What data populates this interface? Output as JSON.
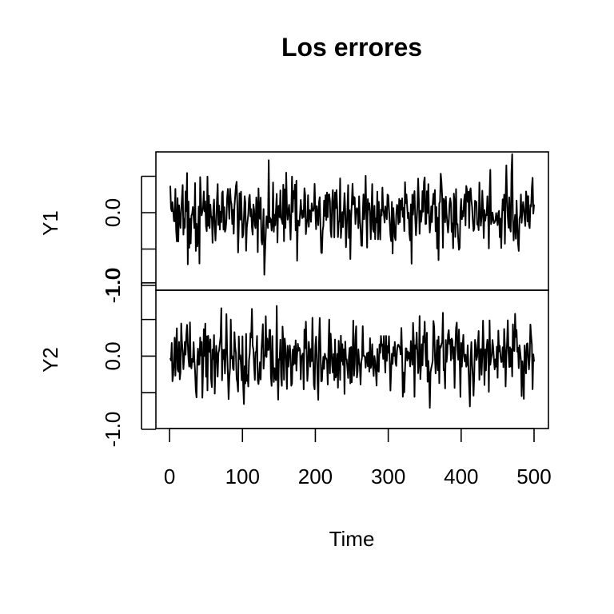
{
  "chart_data": {
    "type": "line",
    "title": "Los errores",
    "xlabel": "Time",
    "x_range": [
      1,
      500
    ],
    "xlim": [
      1,
      500
    ],
    "x_ticks": [
      0,
      100,
      200,
      300,
      400,
      500
    ],
    "x_tick_labels": [
      "0",
      "100",
      "200",
      "300",
      "400",
      "500"
    ],
    "grid": false,
    "legend": "none",
    "panels": [
      {
        "name": "Y1",
        "ylabel": "Y1",
        "ylim": [
          -1.0,
          1.0
        ],
        "y_ticks": [
          -1.0,
          -0.5,
          0.0,
          0.5
        ],
        "y_tick_labels": [
          "-1.0",
          "",
          "0.0",
          ""
        ],
        "approx_range": [
          -0.98,
          0.83
        ]
      },
      {
        "name": "Y2",
        "ylabel": "Y2",
        "ylim": [
          -1.0,
          0.9
        ],
        "y_ticks": [
          -1.0,
          -0.5,
          0.0,
          0.5,
          1.0
        ],
        "y_tick_labels": [
          "-1.0",
          "",
          "0.0",
          "",
          "1.0"
        ],
        "approx_range": [
          -0.95,
          0.93
        ]
      }
    ]
  }
}
